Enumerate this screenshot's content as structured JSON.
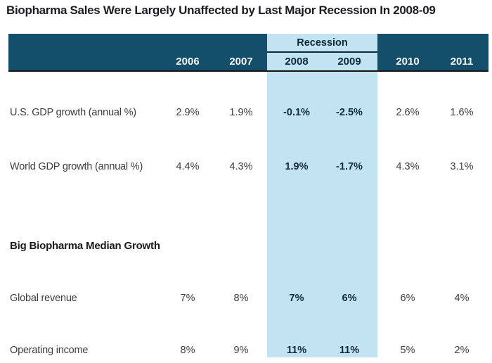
{
  "title": "Biopharma Sales Were Largely Unaffected by Last Major Recession In 2008-09",
  "chart_data": {
    "type": "table",
    "title": "Biopharma Sales Were Largely Unaffected by Last Major Recession In 2008-09",
    "columns": [
      "2006",
      "2007",
      "2008",
      "2009",
      "2010",
      "2011"
    ],
    "highlight_group": {
      "label": "Recession",
      "columns": [
        "2008",
        "2009"
      ]
    },
    "rows": [
      {
        "type": "data",
        "label": "U.S. GDP growth (annual %)",
        "values": [
          "2.9%",
          "1.9%",
          "-0.1%",
          "-2.5%",
          "2.6%",
          "1.6%"
        ]
      },
      {
        "type": "data",
        "label": "World GDP growth (annual %)",
        "values": [
          "4.4%",
          "4.3%",
          "1.9%",
          "-1.7%",
          "4.3%",
          "3.1%"
        ]
      },
      {
        "type": "section",
        "label": "Big Biopharma Median Growth",
        "values": []
      },
      {
        "type": "data",
        "label": "Global revenue",
        "values": [
          "7%",
          "8%",
          "7%",
          "6%",
          "6%",
          "4%"
        ]
      },
      {
        "type": "data",
        "label": "Operating income",
        "values": [
          "8%",
          "9%",
          "11%",
          "11%",
          "5%",
          "2%"
        ]
      }
    ]
  },
  "colors": {
    "title_text": "#1c1c24",
    "header_band": "#134e6a",
    "recession_band": "#c2e4f2",
    "recession_text": "#0e2838",
    "divider": "#10293a",
    "rule": "#141414",
    "year_text": "#f5f5f5",
    "body_text": "#3d3d3d",
    "bold_value_text": "#14293a",
    "section_text": "#1a1a1a"
  }
}
